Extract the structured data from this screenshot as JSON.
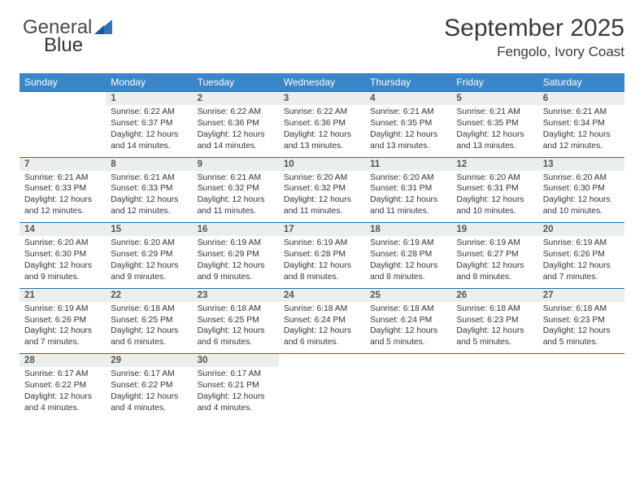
{
  "brand": {
    "part1": "General",
    "part2": "Blue"
  },
  "title": "September 2025",
  "location": "Fengolo, Ivory Coast",
  "colors": {
    "header_bg": "#3a86c8",
    "header_text": "#ffffff",
    "rule": "#2c6aa0",
    "daynum_bg": "#eceeee",
    "brand_blue": "#2f77bb",
    "text": "#333333"
  },
  "weekdays": [
    "Sunday",
    "Monday",
    "Tuesday",
    "Wednesday",
    "Thursday",
    "Friday",
    "Saturday"
  ],
  "weeks": [
    {
      "days": [
        null,
        {
          "n": "1",
          "sr": "Sunrise: 6:22 AM",
          "ss": "Sunset: 6:37 PM",
          "dl": "Daylight: 12 hours and 14 minutes."
        },
        {
          "n": "2",
          "sr": "Sunrise: 6:22 AM",
          "ss": "Sunset: 6:36 PM",
          "dl": "Daylight: 12 hours and 14 minutes."
        },
        {
          "n": "3",
          "sr": "Sunrise: 6:22 AM",
          "ss": "Sunset: 6:36 PM",
          "dl": "Daylight: 12 hours and 13 minutes."
        },
        {
          "n": "4",
          "sr": "Sunrise: 6:21 AM",
          "ss": "Sunset: 6:35 PM",
          "dl": "Daylight: 12 hours and 13 minutes."
        },
        {
          "n": "5",
          "sr": "Sunrise: 6:21 AM",
          "ss": "Sunset: 6:35 PM",
          "dl": "Daylight: 12 hours and 13 minutes."
        },
        {
          "n": "6",
          "sr": "Sunrise: 6:21 AM",
          "ss": "Sunset: 6:34 PM",
          "dl": "Daylight: 12 hours and 12 minutes."
        }
      ]
    },
    {
      "days": [
        {
          "n": "7",
          "sr": "Sunrise: 6:21 AM",
          "ss": "Sunset: 6:33 PM",
          "dl": "Daylight: 12 hours and 12 minutes."
        },
        {
          "n": "8",
          "sr": "Sunrise: 6:21 AM",
          "ss": "Sunset: 6:33 PM",
          "dl": "Daylight: 12 hours and 12 minutes."
        },
        {
          "n": "9",
          "sr": "Sunrise: 6:21 AM",
          "ss": "Sunset: 6:32 PM",
          "dl": "Daylight: 12 hours and 11 minutes."
        },
        {
          "n": "10",
          "sr": "Sunrise: 6:20 AM",
          "ss": "Sunset: 6:32 PM",
          "dl": "Daylight: 12 hours and 11 minutes."
        },
        {
          "n": "11",
          "sr": "Sunrise: 6:20 AM",
          "ss": "Sunset: 6:31 PM",
          "dl": "Daylight: 12 hours and 11 minutes."
        },
        {
          "n": "12",
          "sr": "Sunrise: 6:20 AM",
          "ss": "Sunset: 6:31 PM",
          "dl": "Daylight: 12 hours and 10 minutes."
        },
        {
          "n": "13",
          "sr": "Sunrise: 6:20 AM",
          "ss": "Sunset: 6:30 PM",
          "dl": "Daylight: 12 hours and 10 minutes."
        }
      ]
    },
    {
      "days": [
        {
          "n": "14",
          "sr": "Sunrise: 6:20 AM",
          "ss": "Sunset: 6:30 PM",
          "dl": "Daylight: 12 hours and 9 minutes."
        },
        {
          "n": "15",
          "sr": "Sunrise: 6:20 AM",
          "ss": "Sunset: 6:29 PM",
          "dl": "Daylight: 12 hours and 9 minutes."
        },
        {
          "n": "16",
          "sr": "Sunrise: 6:19 AM",
          "ss": "Sunset: 6:29 PM",
          "dl": "Daylight: 12 hours and 9 minutes."
        },
        {
          "n": "17",
          "sr": "Sunrise: 6:19 AM",
          "ss": "Sunset: 6:28 PM",
          "dl": "Daylight: 12 hours and 8 minutes."
        },
        {
          "n": "18",
          "sr": "Sunrise: 6:19 AM",
          "ss": "Sunset: 6:28 PM",
          "dl": "Daylight: 12 hours and 8 minutes."
        },
        {
          "n": "19",
          "sr": "Sunrise: 6:19 AM",
          "ss": "Sunset: 6:27 PM",
          "dl": "Daylight: 12 hours and 8 minutes."
        },
        {
          "n": "20",
          "sr": "Sunrise: 6:19 AM",
          "ss": "Sunset: 6:26 PM",
          "dl": "Daylight: 12 hours and 7 minutes."
        }
      ]
    },
    {
      "days": [
        {
          "n": "21",
          "sr": "Sunrise: 6:19 AM",
          "ss": "Sunset: 6:26 PM",
          "dl": "Daylight: 12 hours and 7 minutes."
        },
        {
          "n": "22",
          "sr": "Sunrise: 6:18 AM",
          "ss": "Sunset: 6:25 PM",
          "dl": "Daylight: 12 hours and 6 minutes."
        },
        {
          "n": "23",
          "sr": "Sunrise: 6:18 AM",
          "ss": "Sunset: 6:25 PM",
          "dl": "Daylight: 12 hours and 6 minutes."
        },
        {
          "n": "24",
          "sr": "Sunrise: 6:18 AM",
          "ss": "Sunset: 6:24 PM",
          "dl": "Daylight: 12 hours and 6 minutes."
        },
        {
          "n": "25",
          "sr": "Sunrise: 6:18 AM",
          "ss": "Sunset: 6:24 PM",
          "dl": "Daylight: 12 hours and 5 minutes."
        },
        {
          "n": "26",
          "sr": "Sunrise: 6:18 AM",
          "ss": "Sunset: 6:23 PM",
          "dl": "Daylight: 12 hours and 5 minutes."
        },
        {
          "n": "27",
          "sr": "Sunrise: 6:18 AM",
          "ss": "Sunset: 6:23 PM",
          "dl": "Daylight: 12 hours and 5 minutes."
        }
      ]
    },
    {
      "days": [
        {
          "n": "28",
          "sr": "Sunrise: 6:17 AM",
          "ss": "Sunset: 6:22 PM",
          "dl": "Daylight: 12 hours and 4 minutes."
        },
        {
          "n": "29",
          "sr": "Sunrise: 6:17 AM",
          "ss": "Sunset: 6:22 PM",
          "dl": "Daylight: 12 hours and 4 minutes."
        },
        {
          "n": "30",
          "sr": "Sunrise: 6:17 AM",
          "ss": "Sunset: 6:21 PM",
          "dl": "Daylight: 12 hours and 4 minutes."
        },
        null,
        null,
        null,
        null
      ]
    }
  ]
}
